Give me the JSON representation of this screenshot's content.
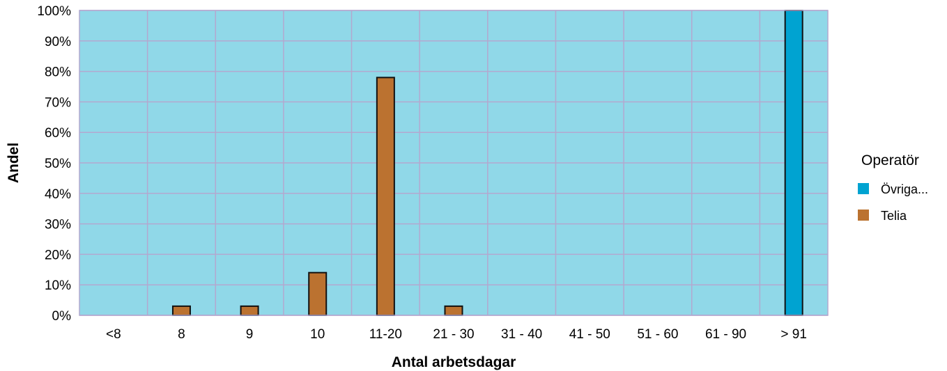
{
  "chart_data": {
    "type": "bar",
    "xlabel": "Antal arbetsdagar",
    "ylabel": "Andel",
    "ylim": [
      0,
      100
    ],
    "yticks": [
      0,
      10,
      20,
      30,
      40,
      50,
      60,
      70,
      80,
      90,
      100
    ],
    "ytick_suffix": "%",
    "grid": true,
    "categories": [
      "<8",
      "8",
      "9",
      "10",
      "11-20",
      "21 - 30",
      "31 - 40",
      "41 - 50",
      "51 - 60",
      "61 - 90",
      "> 91"
    ],
    "series": [
      {
        "name": "Övriga...",
        "color": "#00a3d1",
        "values": [
          0,
          0,
          0,
          0,
          0,
          0,
          0,
          0,
          0,
          0,
          100
        ]
      },
      {
        "name": "Telia",
        "color": "#bb7230",
        "values": [
          0,
          3,
          3,
          14,
          78,
          3,
          0,
          0,
          0,
          0,
          0
        ]
      }
    ],
    "legend": {
      "title": "Operatör",
      "position": "right"
    },
    "plot_background": "#90d8e8",
    "grid_color": "#b3a8cf"
  }
}
